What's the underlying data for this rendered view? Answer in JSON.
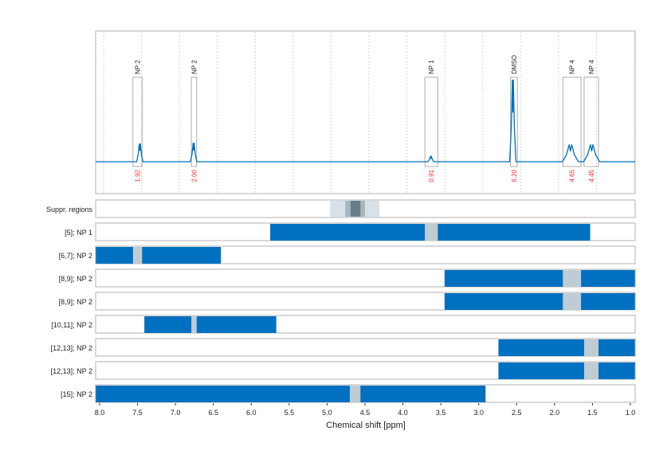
{
  "chart_data": {
    "type": "line",
    "xlabel": "Chemical shift [ppm]",
    "xlim": [
      8.05,
      0.94
    ],
    "x_ticks": [
      "8.0",
      "7.5",
      "7.0",
      "6.5",
      "6.0",
      "5.5",
      "5.0",
      "4.5",
      "4.0",
      "3.5",
      "3.0",
      "2.5",
      "2.0",
      "1.5",
      "1.0"
    ],
    "grid": true,
    "colors": {
      "spectrum": "#0070c0",
      "integral": "#ff2a2a",
      "bar": "#0070c0",
      "bar_gap": "#c0ccd4"
    },
    "peaks": [
      {
        "label": "NP 2",
        "ppm": 7.47,
        "box": [
          7.56,
          7.44
        ],
        "height": 0.22,
        "integral": "1.92"
      },
      {
        "label": "NP 2",
        "ppm": 6.76,
        "box": [
          6.79,
          6.72
        ],
        "height": 0.23,
        "integral": "2.00"
      },
      {
        "label": "NP 1",
        "ppm": 3.63,
        "box": [
          3.71,
          3.54
        ],
        "height": 0.06,
        "integral": "0.91"
      },
      {
        "label": "DMSO",
        "ppm": 2.55,
        "box": [
          2.58,
          2.49
        ],
        "height": 1.0,
        "integral": "6.20"
      },
      {
        "label": "NP 4",
        "ppm": 1.79,
        "box": [
          1.89,
          1.65
        ],
        "height": 0.21,
        "integral": "4.65"
      },
      {
        "label": "NP 4",
        "ppm": 1.51,
        "box": [
          1.61,
          1.42
        ],
        "height": 0.21,
        "integral": "4.45"
      }
    ],
    "suppression": {
      "label": "Suppr. regions",
      "ranges": [
        [
          4.96,
          4.31
        ],
        [
          4.76,
          4.5
        ],
        [
          4.69,
          4.56
        ]
      ]
    },
    "rows": [
      {
        "label": "[5]; NP 1",
        "range": [
          5.75,
          1.53
        ],
        "gap": [
          3.71,
          3.54
        ]
      },
      {
        "label": "[6,7]; NP 2",
        "range": [
          8.05,
          6.4
        ],
        "gap": [
          7.56,
          7.44
        ]
      },
      {
        "label": "[8,9]; NP 2",
        "range": [
          3.45,
          0.94
        ],
        "gap": [
          1.89,
          1.65
        ]
      },
      {
        "label": "[8,9]; NP 2",
        "range": [
          3.45,
          0.94
        ],
        "gap": [
          1.89,
          1.65
        ]
      },
      {
        "label": "[10,11]; NP 2",
        "range": [
          7.41,
          5.67
        ],
        "gap": [
          6.79,
          6.72
        ]
      },
      {
        "label": "[12,13]; NP 2",
        "range": [
          2.74,
          0.94
        ],
        "gap": [
          1.61,
          1.42
        ]
      },
      {
        "label": "[12,13]; NP 2",
        "range": [
          2.74,
          0.94
        ],
        "gap": [
          1.61,
          1.42
        ]
      },
      {
        "label": "[15]; NP 2",
        "range": [
          8.05,
          2.91
        ],
        "gap": [
          4.7,
          4.56
        ]
      }
    ]
  }
}
